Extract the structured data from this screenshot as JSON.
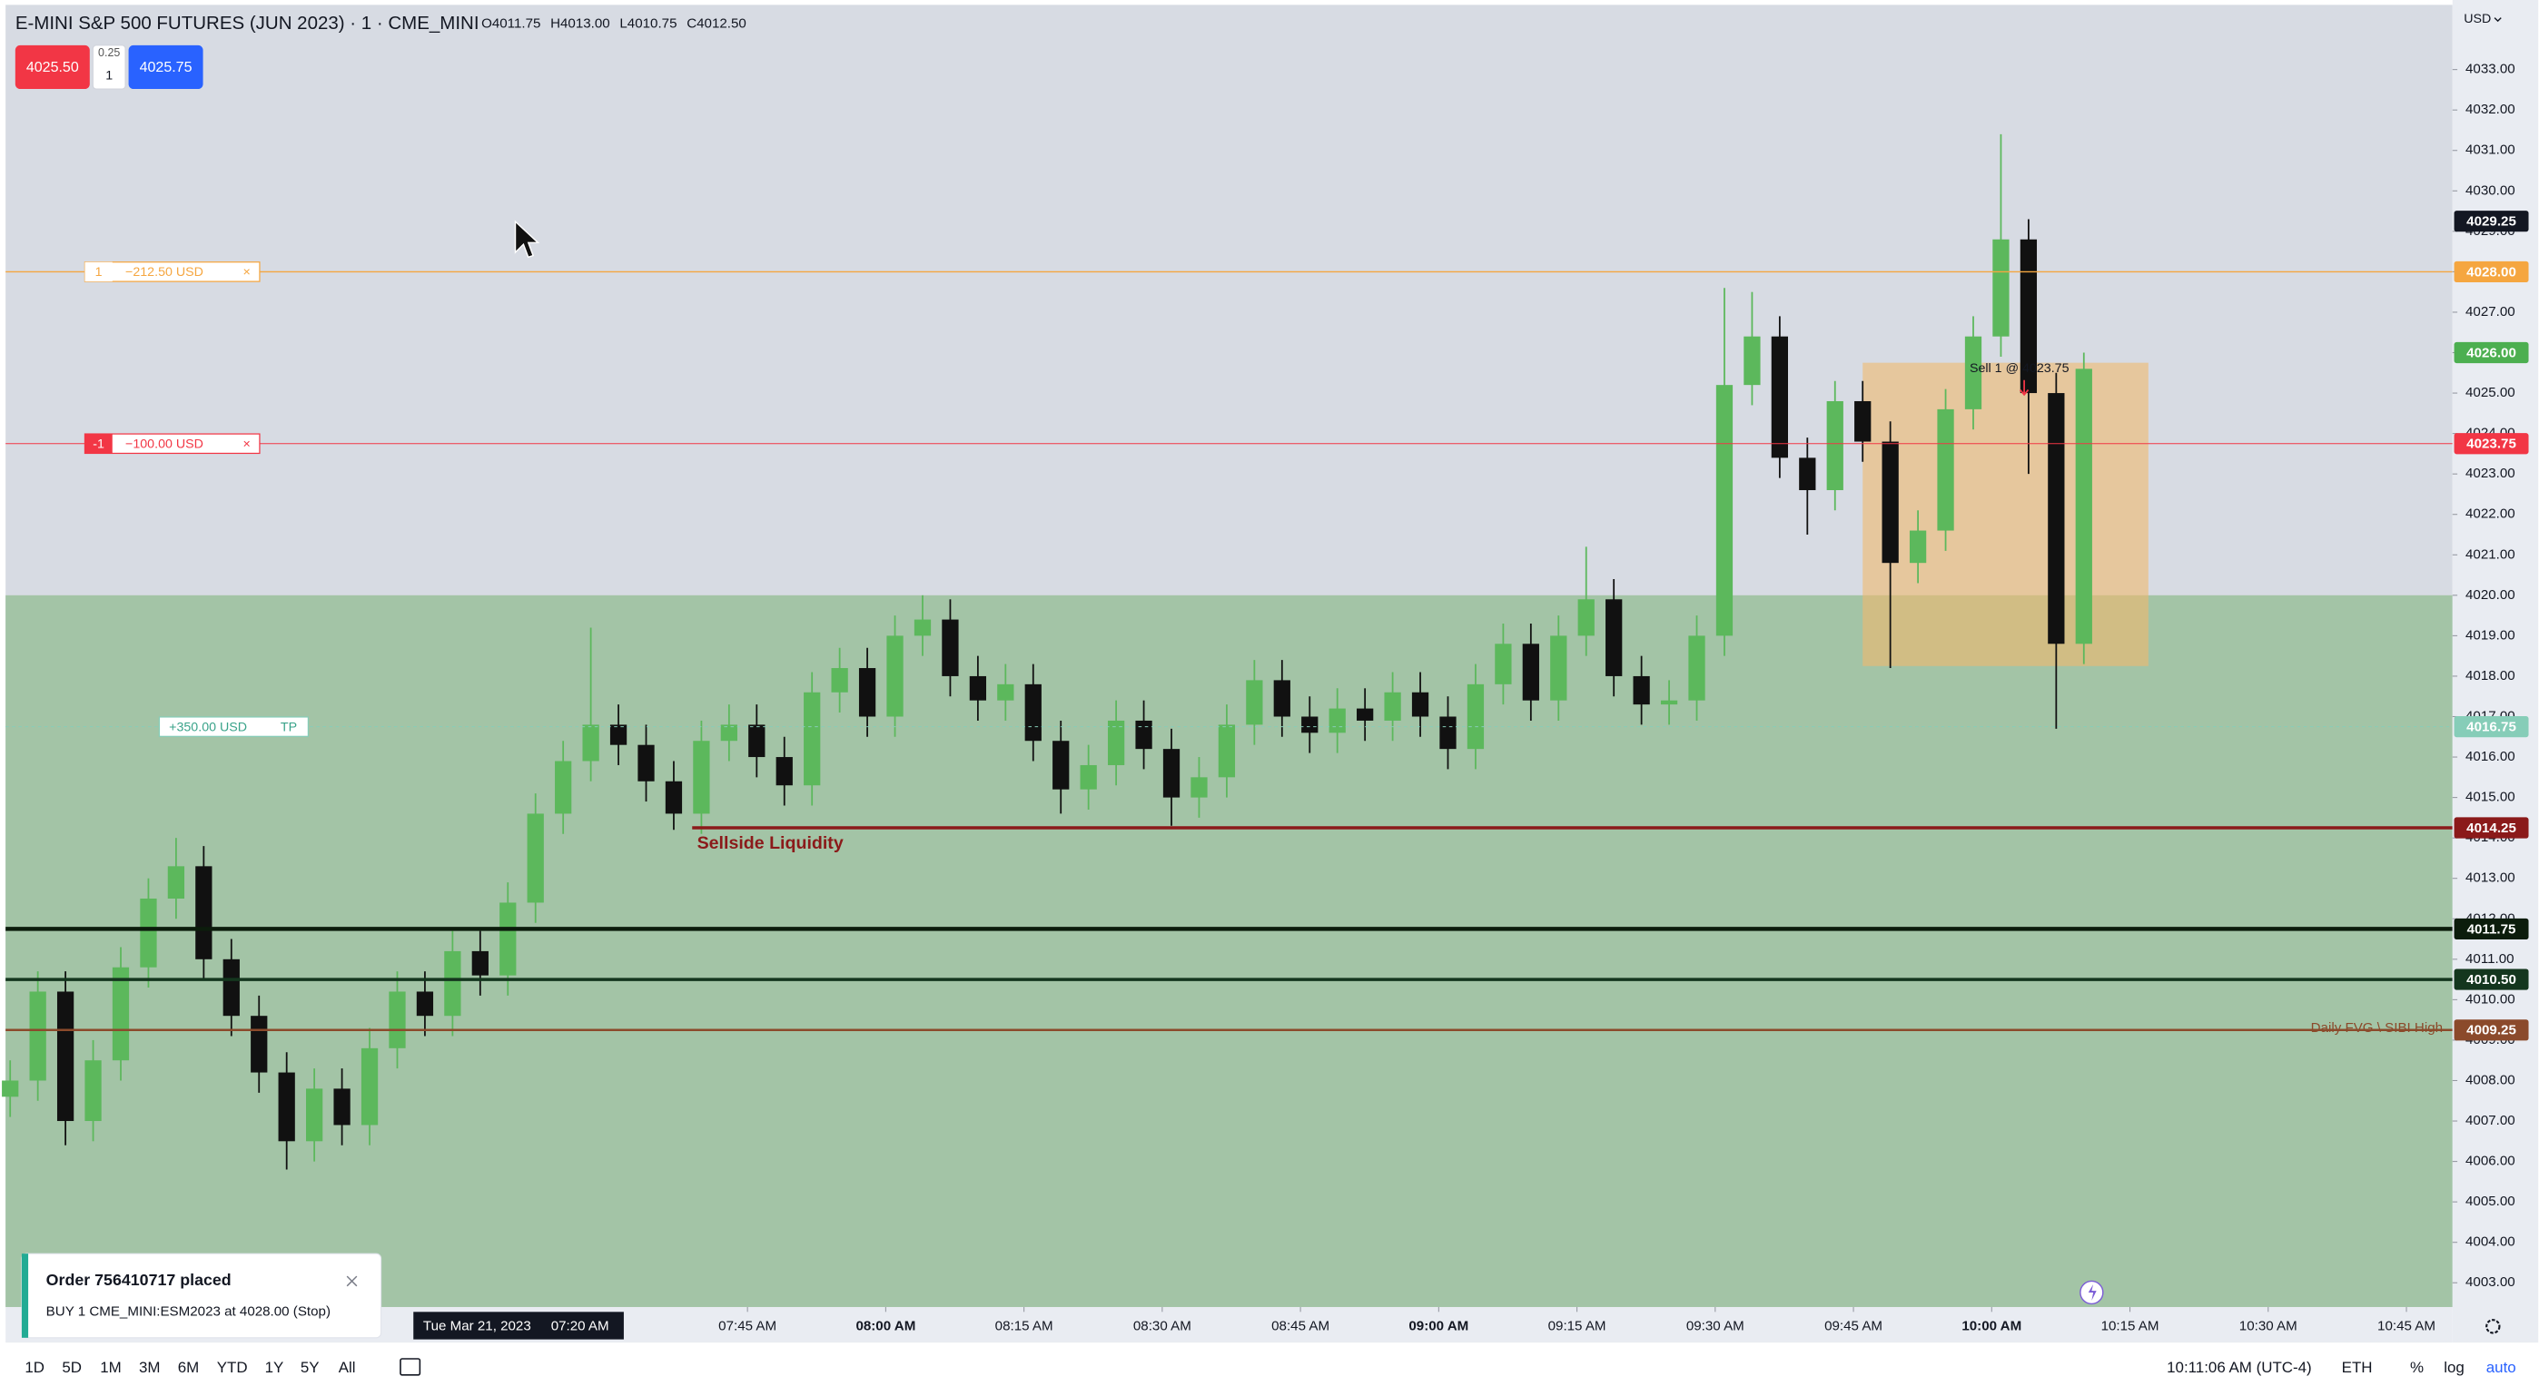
{
  "chart_data": {
    "type": "candlestick",
    "title": "E-MINI S&P 500 FUTURES (JUN 2023) · 1 · CME_MINI",
    "ohlc_legend": [
      "O4011.75",
      "H4013.00",
      "L4010.75",
      "C4012.50"
    ],
    "currency": "USD",
    "up_color": "#5cb85c",
    "down_color": "#111111",
    "x": [
      385,
      388,
      391,
      394,
      397,
      400,
      403,
      406,
      409,
      412,
      415,
      418,
      421,
      424,
      427,
      430,
      433,
      436,
      439,
      442,
      445,
      448,
      451,
      454,
      457,
      460,
      463,
      466,
      469,
      472,
      475,
      478,
      481,
      484,
      487,
      490,
      493,
      496,
      499,
      502,
      505,
      508,
      511,
      514,
      517,
      520,
      523,
      526,
      529,
      532,
      535,
      538,
      541,
      544,
      547,
      550,
      553,
      556,
      559,
      562,
      565,
      568,
      571,
      574,
      577,
      580,
      583,
      586,
      589,
      592,
      595,
      598,
      601,
      604,
      607,
      610
    ],
    "open": [
      4007.6,
      4008.0,
      4010.2,
      4007.0,
      4008.5,
      4010.8,
      4012.5,
      4013.3,
      4011.0,
      4009.6,
      4008.2,
      4006.5,
      4007.8,
      4006.9,
      4008.8,
      4010.2,
      4009.6,
      4011.2,
      4010.6,
      4012.4,
      4014.6,
      4015.9,
      4016.8,
      4016.3,
      4015.4,
      4014.6,
      4016.4,
      4016.8,
      4016.0,
      4015.3,
      4017.6,
      4018.2,
      4017.0,
      4019.0,
      4019.4,
      4018.0,
      4017.4,
      4017.8,
      4016.4,
      4015.2,
      4015.8,
      4016.9,
      4016.2,
      4015.0,
      4015.5,
      4016.8,
      4017.9,
      4017.0,
      4016.6,
      4017.2,
      4016.9,
      4017.6,
      4017.0,
      4016.2,
      4017.8,
      4018.8,
      4017.4,
      4019.0,
      4019.9,
      4018.0,
      4017.3,
      4017.4,
      4019.0,
      4025.2,
      4026.4,
      4023.4,
      4022.6,
      4024.8,
      4023.8,
      4020.8,
      4021.6,
      4024.6,
      4026.4,
      4028.8,
      4025.0,
      4018.8
    ],
    "high": [
      4008.5,
      4010.7,
      4010.7,
      4009.0,
      4011.3,
      4013.0,
      4014.0,
      4013.8,
      4011.5,
      4010.1,
      4008.7,
      4008.3,
      4008.3,
      4009.3,
      4010.7,
      4010.7,
      4011.7,
      4011.7,
      4012.9,
      4015.1,
      4016.4,
      4019.2,
      4017.3,
      4016.8,
      4015.9,
      4016.9,
      4017.3,
      4017.3,
      4016.5,
      4018.1,
      4018.7,
      4018.7,
      4019.5,
      4020.0,
      4019.9,
      4018.5,
      4018.3,
      4018.3,
      4016.9,
      4016.3,
      4017.4,
      4017.4,
      4016.7,
      4016.0,
      4017.3,
      4018.4,
      4018.4,
      4017.5,
      4017.7,
      4017.7,
      4018.1,
      4018.1,
      4017.5,
      4018.3,
      4019.3,
      4019.3,
      4019.5,
      4021.2,
      4020.4,
      4018.5,
      4017.9,
      4019.5,
      4027.6,
      4027.5,
      4026.9,
      4023.9,
      4025.3,
      4025.3,
      4024.3,
      4022.1,
      4025.1,
      4026.9,
      4031.4,
      4029.3,
      4025.5,
      4026.0
    ],
    "low": [
      4007.1,
      4007.5,
      4006.4,
      4006.5,
      4008.0,
      4010.3,
      4012.0,
      4010.5,
      4009.1,
      4007.7,
      4005.8,
      4006.0,
      4006.4,
      4006.4,
      4008.3,
      4009.1,
      4009.1,
      4010.1,
      4010.1,
      4011.9,
      4014.1,
      4015.4,
      4015.8,
      4014.9,
      4014.2,
      4014.1,
      4015.9,
      4015.5,
      4014.8,
      4014.8,
      4017.1,
      4016.5,
      4016.5,
      4018.5,
      4017.5,
      4016.9,
      4016.9,
      4015.9,
      4014.6,
      4014.7,
      4015.3,
      4015.7,
      4014.3,
      4014.5,
      4015.0,
      4016.3,
      4016.5,
      4016.1,
      4016.1,
      4016.4,
      4016.4,
      4016.5,
      4015.7,
      4015.7,
      4017.3,
      4016.9,
      4016.9,
      4018.5,
      4017.5,
      4016.8,
      4016.8,
      4016.9,
      4018.5,
      4024.7,
      4022.9,
      4021.5,
      4022.1,
      4023.3,
      4018.2,
      4020.3,
      4021.1,
      4024.1,
      4025.9,
      4023.0,
      4016.7,
      4018.3
    ],
    "close": [
      4008.0,
      4010.2,
      4007.0,
      4008.5,
      4010.8,
      4012.5,
      4013.3,
      4011.0,
      4009.6,
      4008.2,
      4006.5,
      4007.8,
      4006.9,
      4008.8,
      4010.2,
      4009.6,
      4011.2,
      4010.6,
      4012.4,
      4014.6,
      4015.9,
      4016.8,
      4016.3,
      4015.4,
      4014.6,
      4016.4,
      4016.8,
      4016.0,
      4015.3,
      4017.6,
      4018.2,
      4017.0,
      4019.0,
      4019.4,
      4018.0,
      4017.4,
      4017.8,
      4016.4,
      4015.2,
      4015.8,
      4016.9,
      4016.2,
      4015.0,
      4015.5,
      4016.8,
      4017.9,
      4017.0,
      4016.6,
      4017.2,
      4016.9,
      4017.6,
      4017.0,
      4016.2,
      4017.8,
      4018.8,
      4017.4,
      4019.0,
      4019.9,
      4018.0,
      4017.3,
      4017.4,
      4019.0,
      4025.2,
      4026.4,
      4023.4,
      4022.6,
      4024.8,
      4023.8,
      4020.8,
      4021.6,
      4024.6,
      4026.4,
      4028.8,
      4025.0,
      4018.8,
      4025.6
    ],
    "xlim": [
      384.5,
      650
    ],
    "ylim": [
      4002.4,
      4034.6
    ],
    "xticks": [
      {
        "value": 465,
        "label": "07:45 AM"
      },
      {
        "value": 480,
        "label": "08:00 AM"
      },
      {
        "value": 495,
        "label": "08:15 AM"
      },
      {
        "value": 510,
        "label": "08:30 AM"
      },
      {
        "value": 525,
        "label": "08:45 AM"
      },
      {
        "value": 540,
        "label": "09:00 AM"
      },
      {
        "value": 555,
        "label": "09:15 AM"
      },
      {
        "value": 570,
        "label": "09:30 AM"
      },
      {
        "value": 585,
        "label": "09:45 AM"
      },
      {
        "value": 600,
        "label": "10:00 AM"
      },
      {
        "value": 615,
        "label": "10:15 AM"
      },
      {
        "value": 630,
        "label": "10:30 AM"
      },
      {
        "value": 645,
        "label": "10:45 AM"
      }
    ],
    "yticks": [
      {
        "value": 4003,
        "label": "4003.00"
      },
      {
        "value": 4004,
        "label": "4004.00"
      },
      {
        "value": 4005,
        "label": "4005.00"
      },
      {
        "value": 4006,
        "label": "4006.00"
      },
      {
        "value": 4007,
        "label": "4007.00"
      },
      {
        "value": 4008,
        "label": "4008.00"
      },
      {
        "value": 4009,
        "label": "4009.00"
      },
      {
        "value": 4010,
        "label": "4010.00"
      },
      {
        "value": 4011,
        "label": "4011.00"
      },
      {
        "value": 4012,
        "label": "4012.00"
      },
      {
        "value": 4013,
        "label": "4013.00"
      },
      {
        "value": 4014,
        "label": "4014.00"
      },
      {
        "value": 4015,
        "label": "4015.00"
      },
      {
        "value": 4016,
        "label": "4016.00"
      },
      {
        "value": 4017,
        "label": "4017.00"
      },
      {
        "value": 4018,
        "label": "4018.00"
      },
      {
        "value": 4019,
        "label": "4019.00"
      },
      {
        "value": 4020,
        "label": "4020.00"
      },
      {
        "value": 4021,
        "label": "4021.00"
      },
      {
        "value": 4022,
        "label": "4022.00"
      },
      {
        "value": 4023,
        "label": "4023.00"
      },
      {
        "value": 4024,
        "label": "4024.00"
      },
      {
        "value": 4025,
        "label": "4025.00"
      },
      {
        "value": 4026,
        "label": "4026.00"
      },
      {
        "value": 4027,
        "label": "4027.00"
      },
      {
        "value": 4028,
        "label": "4028.00"
      },
      {
        "value": 4029,
        "label": "4029.00"
      },
      {
        "value": 4030,
        "label": "4030.00"
      },
      {
        "value": 4031,
        "label": "4031.00"
      },
      {
        "value": 4032,
        "label": "4032.00"
      },
      {
        "value": 4033,
        "label": "4033.00"
      }
    ],
    "zones": [
      {
        "top": 4020,
        "color": "#a3c4a6"
      },
      {
        "x": [
          586,
          617
        ],
        "y": [
          4018.25,
          4025.75
        ],
        "color": "rgba(240,185,110,0.6)"
      }
    ],
    "price_lines": [
      {
        "value": 4028,
        "label": "4028.00",
        "color": "#f5a640",
        "width": 0.8,
        "order": [
          "1",
          "−212.50 USD",
          "×"
        ]
      },
      {
        "value": 4023.75,
        "label": "4023.75",
        "color": "#f23645",
        "width": 0.6,
        "order": [
          "-1",
          "−100.00 USD",
          "×"
        ]
      },
      {
        "value": 4016.75,
        "label": "4016.75",
        "color": "#86cdb8",
        "width": 0.6,
        "dash": true,
        "order": [
          "+350.00 USD",
          "TP"
        ]
      },
      {
        "value": 4014.25,
        "label": "4014.25",
        "color": "#8b1a1a",
        "width": 2,
        "from": 459,
        "text": "Sellside Liquidity"
      },
      {
        "value": 4011.75,
        "label": "4011.75",
        "color": "#0c1c0c",
        "width": 2.5
      },
      {
        "value": 4010.5,
        "label": "4010.50",
        "color": "#14361e",
        "width": 2
      },
      {
        "value": 4009.25,
        "label": "4009.25",
        "color": "#8b4a2b",
        "width": 1.4,
        "text": "Daily FVG \\ SIBI High"
      }
    ],
    "price_tags": [
      {
        "value": 4029.25,
        "label": "4029.25",
        "color": "#131722"
      },
      {
        "value": 4026,
        "label": "4026.00",
        "color": "#4caf50"
      }
    ],
    "annotations": [
      {
        "text": "Sell 1 @ 4023.75",
        "x": 603,
        "y": 4025.6
      }
    ],
    "crosshair": {
      "date": "Tue Mar 21, 2023",
      "time": "07:20 AM"
    }
  },
  "trade_panel": {
    "sell": "4025.50",
    "tick": "0.25",
    "qty": "1",
    "buy": "4025.75"
  },
  "notification": {
    "title": "Order 756410717 placed",
    "body": "BUY 1 CME_MINI:ESM2023 at 4028.00  (Stop)"
  },
  "toolbar": {
    "ranges": [
      "1D",
      "5D",
      "1M",
      "3M",
      "6M",
      "YTD",
      "1Y",
      "5Y",
      "All"
    ],
    "clock": "10:11:06 AM (UTC-4)",
    "session": "ETH",
    "options": [
      "%",
      "log",
      "auto"
    ]
  }
}
